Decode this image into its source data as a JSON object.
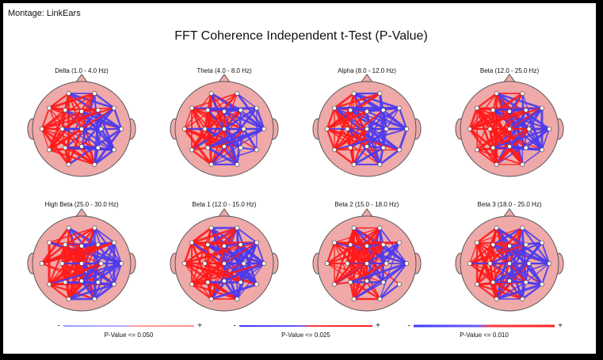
{
  "header": {
    "montage": "Montage:  LinkEars",
    "title": "FFT Coherence Independent t-Test  (P-Value)"
  },
  "panels": [
    {
      "label": "Delta (1.0 - 4.0 Hz)"
    },
    {
      "label": "Theta (4.0 - 8.0 Hz)"
    },
    {
      "label": "Alpha (8.0 - 12.0 Hz)"
    },
    {
      "label": "Beta (12.0 - 25.0 Hz)"
    },
    {
      "label": "High Beta (25.0 - 30.0 Hz)"
    },
    {
      "label": "Beta 1 (12.0 - 15.0 Hz)"
    },
    {
      "label": "Beta 2 (15.0 - 18.0 Hz)"
    },
    {
      "label": "Beta 3 (18.0 - 25.0 Hz)"
    }
  ],
  "legend": [
    {
      "minus": "-",
      "plus": "+",
      "label": "P-Value <= 0.050"
    },
    {
      "minus": "-",
      "plus": "+",
      "label": "P-Value <= 0.025"
    },
    {
      "minus": "-",
      "plus": "+",
      "label": "P-Value <= 0.010"
    }
  ]
}
